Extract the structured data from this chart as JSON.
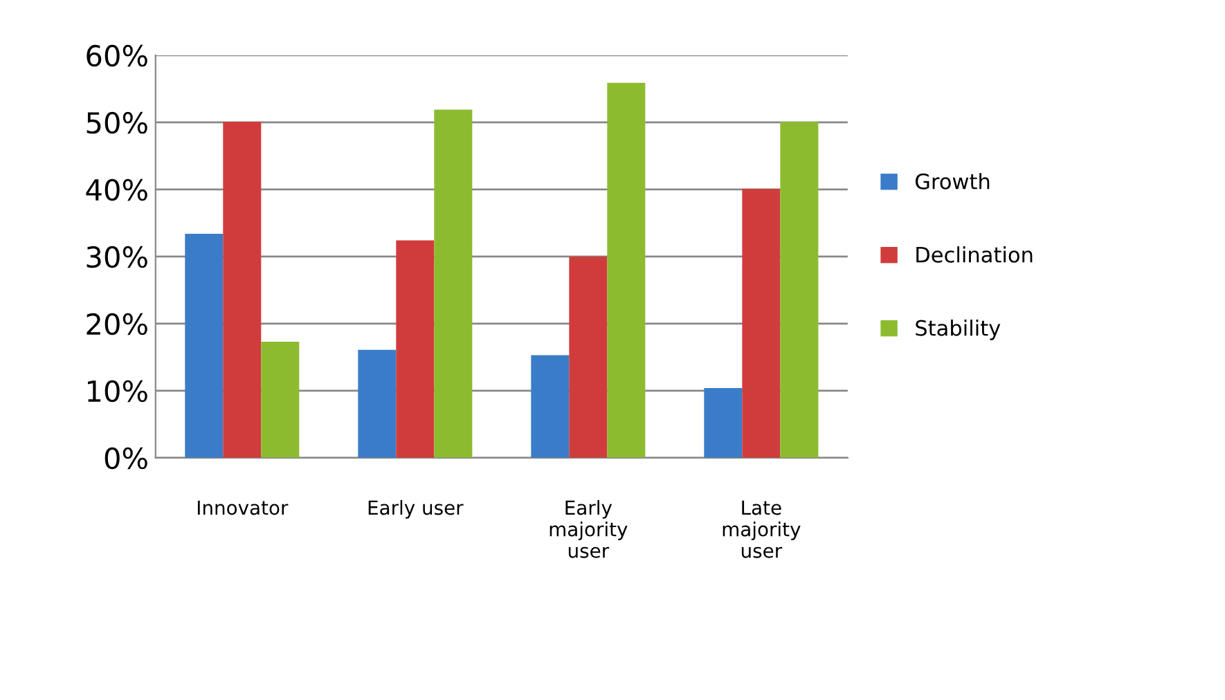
{
  "chart_data": {
    "type": "bar",
    "categories": [
      "Innovator",
      "Early user",
      "Early\nmajority\nuser",
      "Late\nmajority\nuser"
    ],
    "series": [
      {
        "name": "Growth",
        "color": "#3a7cc8",
        "values": [
          33.4,
          16.1,
          15.3,
          10.4
        ]
      },
      {
        "name": "Declination",
        "color": "#d03c3c",
        "values": [
          50.1,
          32.4,
          30.0,
          40.1
        ]
      },
      {
        "name": "Stability",
        "color": "#8dbb30",
        "values": [
          17.3,
          51.9,
          55.9,
          50.1
        ]
      }
    ],
    "ylim": [
      0,
      60
    ],
    "yticks": [
      {
        "value": 0,
        "label": "0%"
      },
      {
        "value": 10,
        "label": "10%"
      },
      {
        "value": 20,
        "label": "20%"
      },
      {
        "value": 30,
        "label": "30%"
      },
      {
        "value": 40,
        "label": "40%"
      },
      {
        "value": 50,
        "label": "50%"
      },
      {
        "value": 60,
        "label": "60%"
      }
    ],
    "grid": "y",
    "legend": "right"
  }
}
